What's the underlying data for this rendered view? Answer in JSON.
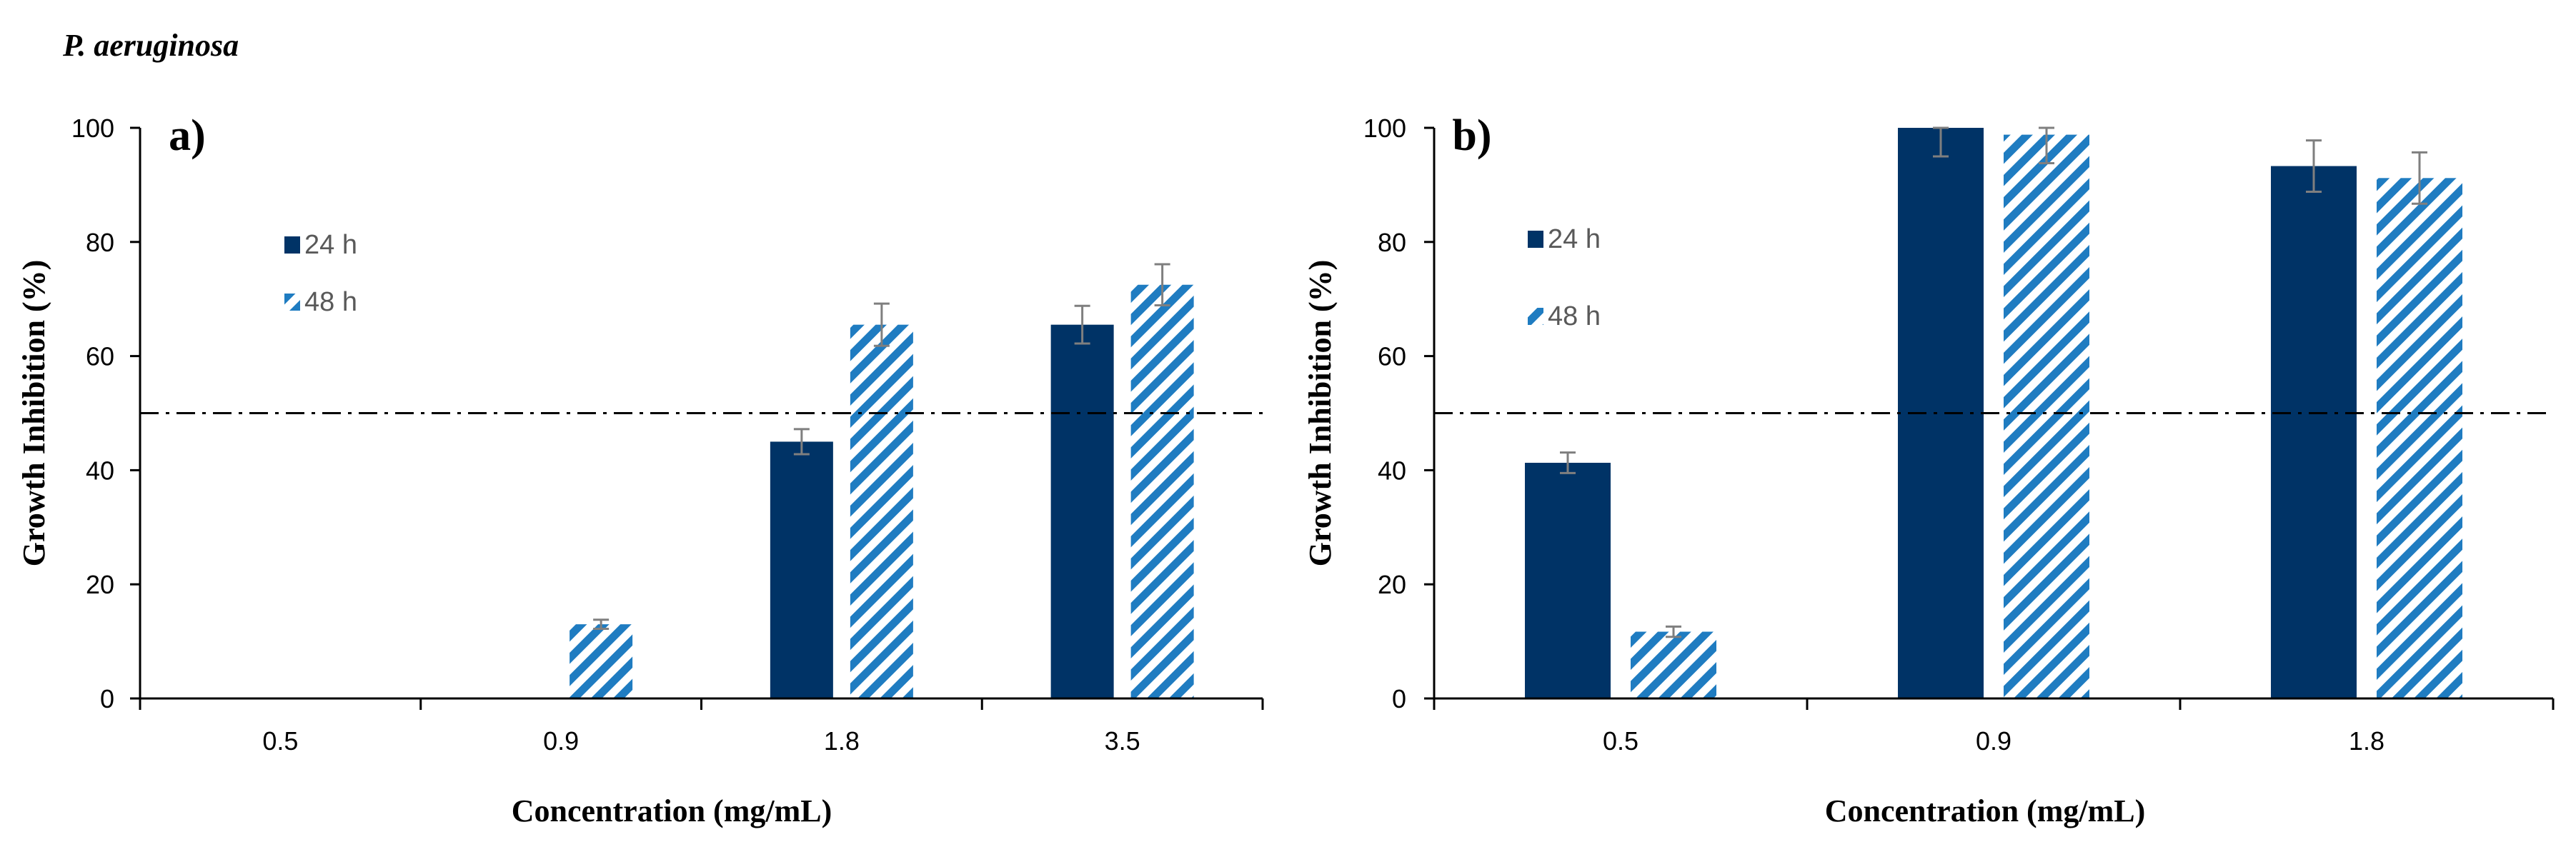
{
  "figure": {
    "organism": "P. aeruginosa"
  },
  "colors": {
    "bar_24h": "#003366",
    "bar_48h_stripe": "#1f7cc1",
    "error_bar": "#7f7f7f",
    "axis": "#000000",
    "threshold_line": "#000000"
  },
  "chart_data": [
    {
      "type": "bar",
      "panel_label": "a)",
      "categories": [
        "0.5",
        "0.9",
        "1.8",
        "3.5"
      ],
      "series": [
        {
          "name": "24 h",
          "pattern": "solid",
          "values": [
            0,
            0,
            45,
            65.5
          ],
          "errors": [
            0,
            0,
            2.2,
            3.3
          ]
        },
        {
          "name": "48 h",
          "pattern": "diagonal-stripes",
          "values": [
            0,
            13,
            65.5,
            72.5
          ],
          "errors": [
            0,
            0.8,
            3.7,
            3.6
          ]
        }
      ],
      "threshold": 50,
      "xlabel": "Concentration (mg/mL)",
      "ylabel": "Growth Inhibition (%)",
      "ylim": [
        0,
        100
      ],
      "yticks": [
        0,
        20,
        40,
        60,
        80,
        100
      ],
      "grid": false,
      "legend": "upper-left"
    },
    {
      "type": "bar",
      "panel_label": "b)",
      "categories": [
        "0.5",
        "0.9",
        "1.8"
      ],
      "series": [
        {
          "name": "24 h",
          "pattern": "solid",
          "values": [
            41.3,
            100,
            93.3
          ],
          "errors": [
            1.8,
            5,
            4.5
          ]
        },
        {
          "name": "48 h",
          "pattern": "diagonal-stripes",
          "values": [
            11.7,
            98.8,
            91.2
          ],
          "errors": [
            0.9,
            5,
            4.5
          ]
        }
      ],
      "threshold": 50,
      "xlabel": "Concentration (mg/mL)",
      "ylabel": "Growth Inhibition (%)",
      "ylim": [
        0,
        100
      ],
      "yticks": [
        0,
        20,
        40,
        60,
        80,
        100
      ],
      "grid": false,
      "legend": "upper-left"
    }
  ]
}
